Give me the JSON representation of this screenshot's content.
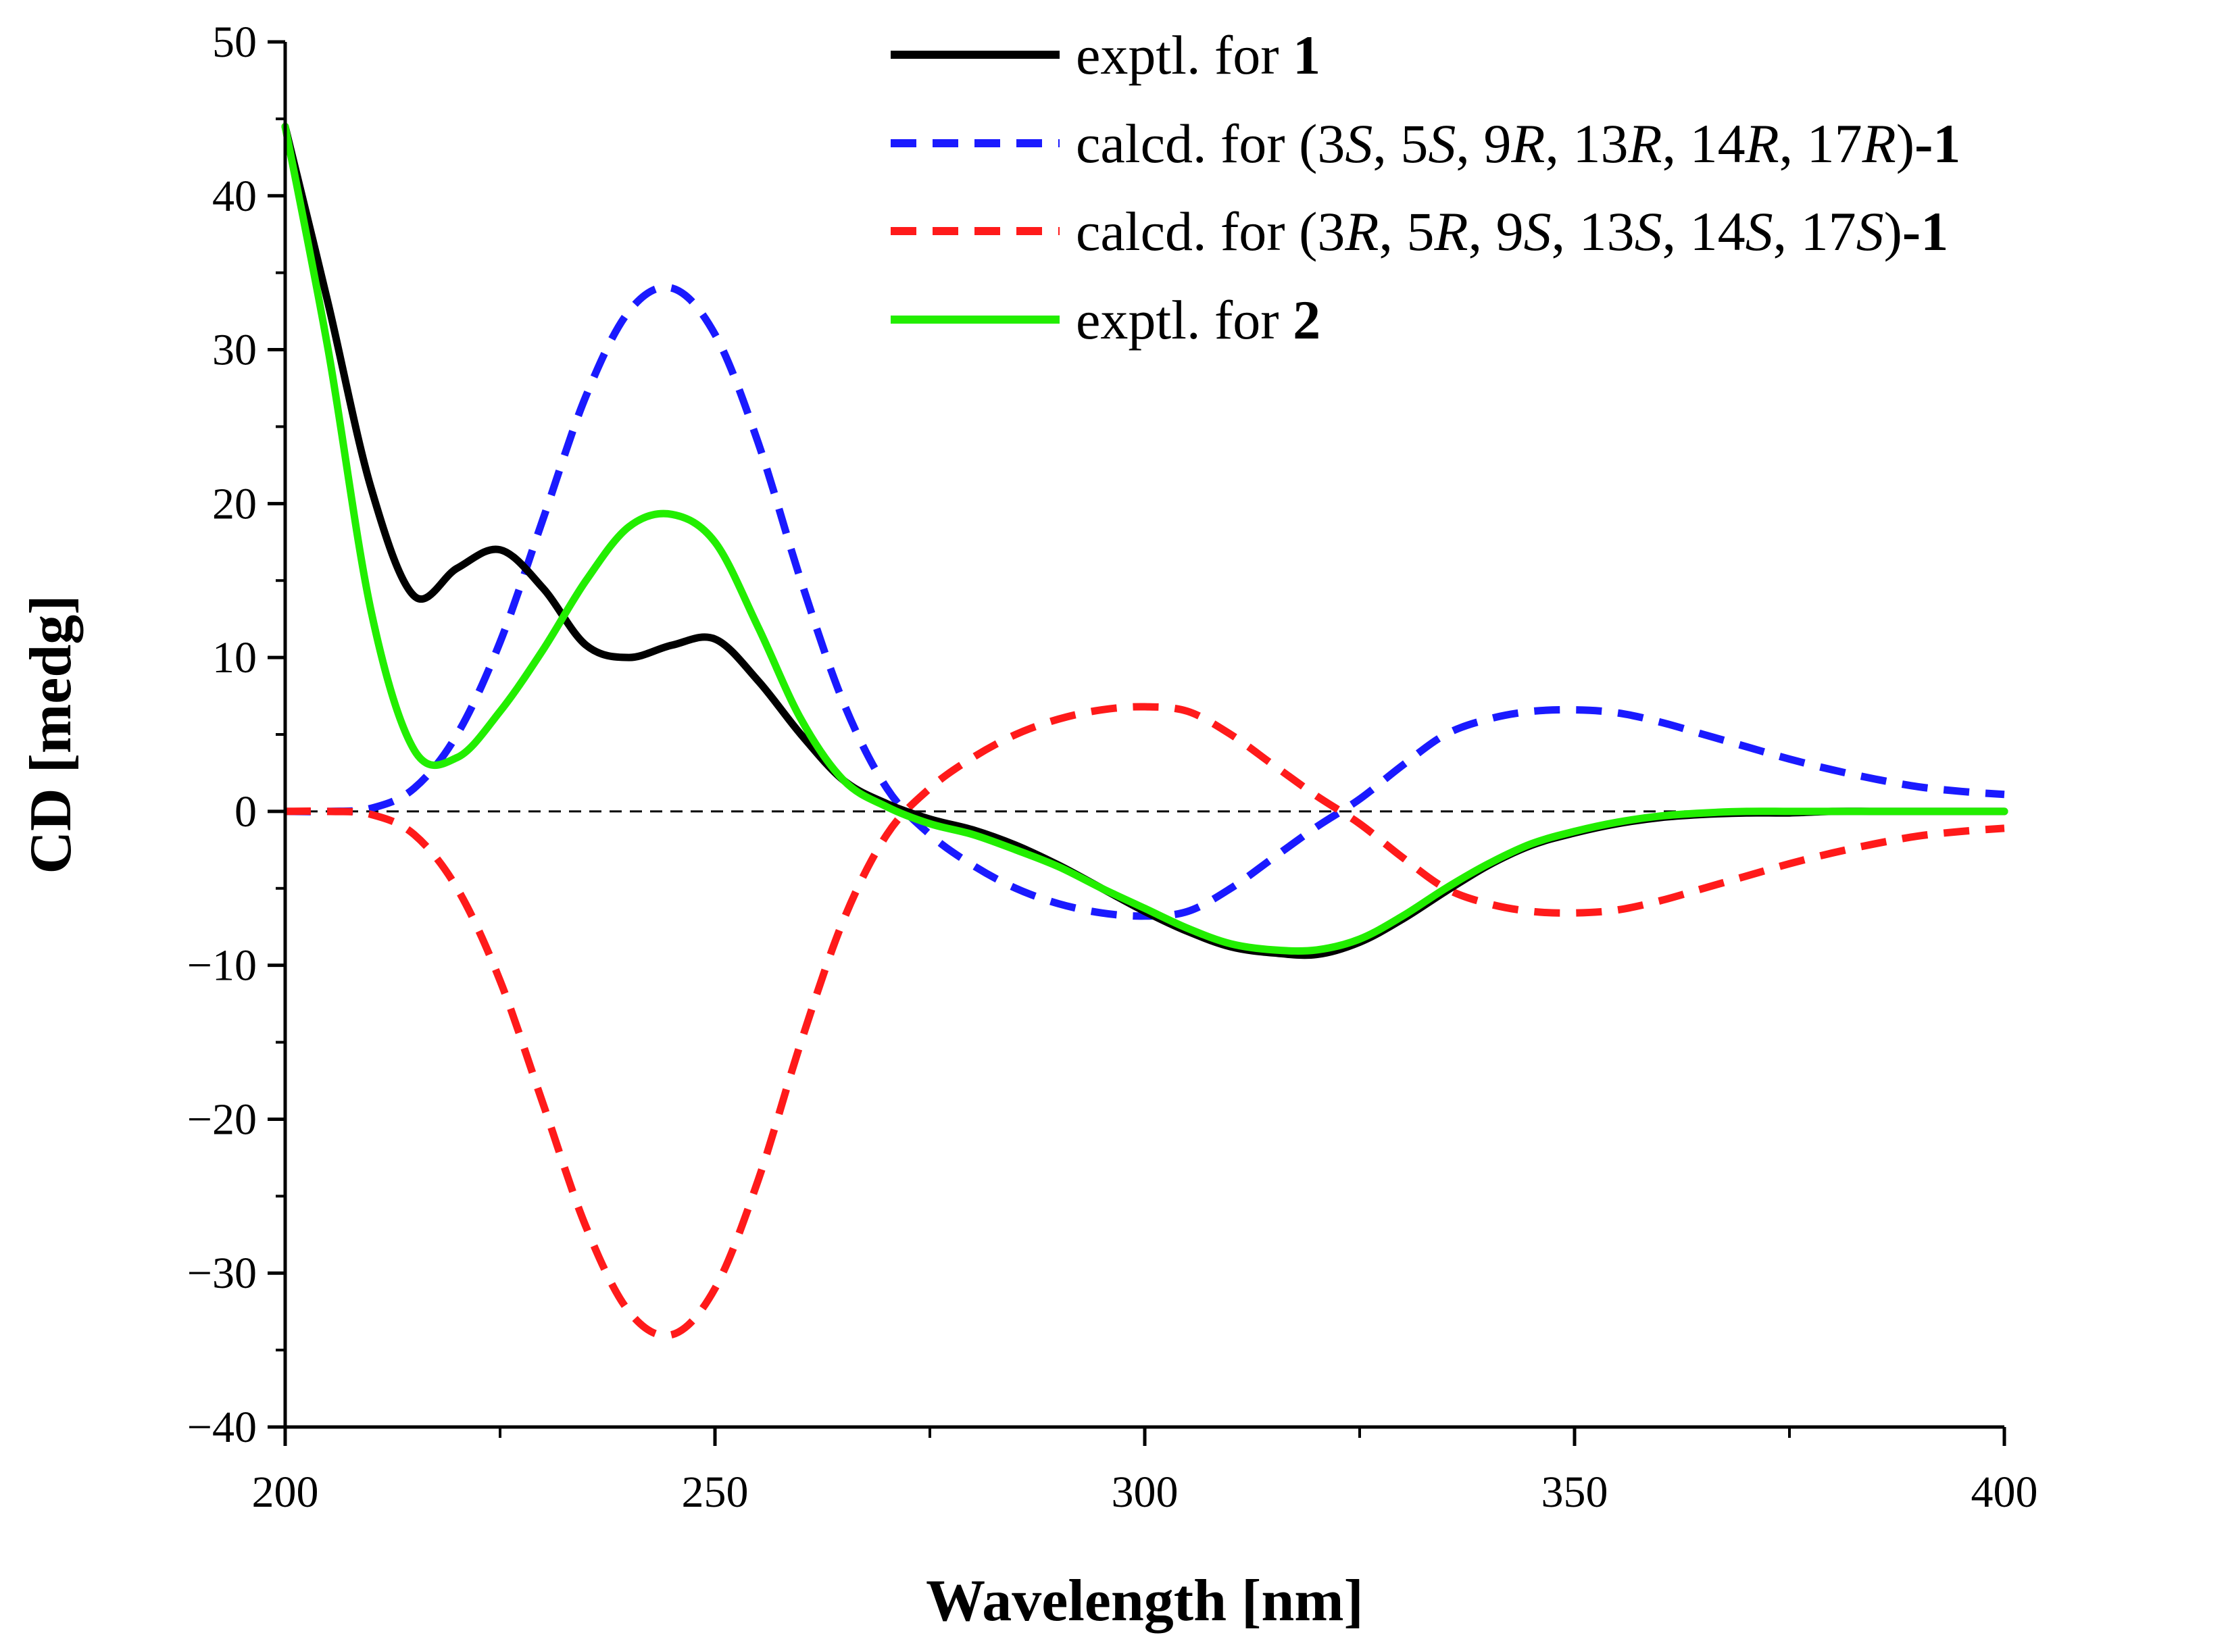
{
  "chart_data": {
    "type": "line",
    "title": "",
    "xlabel": "Wavelength [nm]",
    "ylabel": "CD [medg]",
    "xlim": [
      200,
      400
    ],
    "ylim": [
      -40,
      50
    ],
    "xticks": [
      200,
      250,
      300,
      350,
      400
    ],
    "xtick_labels": [
      "200",
      "250",
      "300",
      "350",
      "400"
    ],
    "yticks": [
      -40,
      -30,
      -20,
      -10,
      0,
      10,
      20,
      30,
      40,
      50
    ],
    "ytick_labels": [
      "−40",
      "−30",
      "−20",
      "−10",
      "0",
      "10",
      "20",
      "30",
      "40",
      "50"
    ],
    "grid": false,
    "legend_position": "top-right",
    "zero_line": true,
    "series": [
      {
        "name": "exptl. for 1",
        "legend_parts": [
          {
            "t": "exptl. for ",
            "s": "n"
          },
          {
            "t": "1",
            "s": "b"
          }
        ],
        "color": "#000000",
        "dash": "solid",
        "x": [
          200,
          205,
          210,
          215,
          220,
          225,
          230,
          235,
          240,
          245,
          250,
          255,
          260,
          265,
          270,
          275,
          280,
          285,
          290,
          295,
          300,
          305,
          310,
          315,
          320,
          325,
          330,
          335,
          340,
          345,
          350,
          355,
          360,
          365,
          370,
          375,
          380,
          385,
          390,
          395,
          400
        ],
        "y": [
          44.5,
          33,
          21,
          14,
          15.8,
          17,
          14.5,
          10.8,
          10,
          10.8,
          11.2,
          8.5,
          5,
          2,
          0.5,
          -0.5,
          -1.2,
          -2.2,
          -3.5,
          -5,
          -6.5,
          -7.8,
          -8.8,
          -9.2,
          -9.3,
          -8.5,
          -7,
          -5.2,
          -3.5,
          -2.2,
          -1.4,
          -0.8,
          -0.4,
          -0.2,
          -0.1,
          -0.1,
          0,
          0,
          0,
          0,
          0
        ]
      },
      {
        "name": "calcd. for (3S, 5S, 9R, 13R, 14R, 17R)-1",
        "legend_parts": [
          {
            "t": "calcd. for (3",
            "s": "n"
          },
          {
            "t": "S",
            "s": "i"
          },
          {
            "t": ", 5",
            "s": "n"
          },
          {
            "t": "S",
            "s": "i"
          },
          {
            "t": ", 9",
            "s": "n"
          },
          {
            "t": "R",
            "s": "i"
          },
          {
            "t": ", 13",
            "s": "n"
          },
          {
            "t": "R",
            "s": "i"
          },
          {
            "t": ", 14",
            "s": "n"
          },
          {
            "t": "R",
            "s": "i"
          },
          {
            "t": ", 17",
            "s": "n"
          },
          {
            "t": "R",
            "s": "i"
          },
          {
            "t": ")",
            "s": "n"
          },
          {
            "t": "-1",
            "s": "b"
          }
        ],
        "color": "#1a1aff",
        "dash": "dashed",
        "x": [
          200,
          205,
          210,
          215,
          220,
          225,
          230,
          235,
          240,
          245,
          250,
          255,
          260,
          265,
          270,
          275,
          280,
          285,
          290,
          295,
          300,
          305,
          310,
          315,
          320,
          325,
          330,
          335,
          340,
          345,
          350,
          355,
          360,
          365,
          370,
          375,
          380,
          385,
          390,
          395,
          400
        ],
        "y": [
          0,
          0,
          0.2,
          1.5,
          5,
          11,
          19,
          27,
          32.5,
          34,
          31,
          24,
          15,
          7,
          1.5,
          -1.5,
          -3.5,
          -5,
          -6,
          -6.6,
          -6.8,
          -6.5,
          -5,
          -3,
          -1,
          0.8,
          3,
          5,
          6,
          6.5,
          6.6,
          6.4,
          5.8,
          5,
          4.2,
          3.4,
          2.7,
          2.1,
          1.6,
          1.3,
          1.1
        ]
      },
      {
        "name": "calcd. for (3R, 5R, 9S, 13S, 14S, 17S)-1",
        "legend_parts": [
          {
            "t": "calcd. for (3",
            "s": "n"
          },
          {
            "t": "R",
            "s": "i"
          },
          {
            "t": ", 5",
            "s": "n"
          },
          {
            "t": "R",
            "s": "i"
          },
          {
            "t": ", 9",
            "s": "n"
          },
          {
            "t": "S",
            "s": "i"
          },
          {
            "t": ", 13",
            "s": "n"
          },
          {
            "t": "S",
            "s": "i"
          },
          {
            "t": ", 14",
            "s": "n"
          },
          {
            "t": "S",
            "s": "i"
          },
          {
            "t": ", 17",
            "s": "n"
          },
          {
            "t": "S",
            "s": "i"
          },
          {
            "t": ")",
            "s": "n"
          },
          {
            "t": "-1",
            "s": "b"
          }
        ],
        "color": "#ff1a1a",
        "dash": "dashed",
        "x": [
          200,
          205,
          210,
          215,
          220,
          225,
          230,
          235,
          240,
          245,
          250,
          255,
          260,
          265,
          270,
          275,
          280,
          285,
          290,
          295,
          300,
          305,
          310,
          315,
          320,
          325,
          330,
          335,
          340,
          345,
          350,
          355,
          360,
          365,
          370,
          375,
          380,
          385,
          390,
          395,
          400
        ],
        "y": [
          0,
          0,
          -0.2,
          -1.5,
          -5,
          -11,
          -19,
          -27,
          -32.5,
          -34,
          -31,
          -24,
          -15,
          -7,
          -1.5,
          1.5,
          3.5,
          5,
          6,
          6.6,
          6.8,
          6.5,
          5,
          3,
          1,
          -0.8,
          -3,
          -5,
          -6,
          -6.5,
          -6.6,
          -6.4,
          -5.8,
          -5,
          -4.2,
          -3.4,
          -2.7,
          -2.1,
          -1.6,
          -1.3,
          -1.1
        ]
      },
      {
        "name": "exptl. for 2",
        "legend_parts": [
          {
            "t": "exptl. for ",
            "s": "n"
          },
          {
            "t": "2",
            "s": "b"
          }
        ],
        "color": "#22ee00",
        "dash": "solid",
        "x": [
          200,
          205,
          210,
          215,
          220,
          225,
          230,
          235,
          240,
          245,
          250,
          255,
          260,
          265,
          270,
          275,
          280,
          285,
          290,
          295,
          300,
          305,
          310,
          315,
          320,
          325,
          330,
          335,
          340,
          345,
          350,
          355,
          360,
          365,
          370,
          375,
          380,
          385,
          390,
          395,
          400
        ],
        "y": [
          44.5,
          30,
          13,
          4,
          3.5,
          6.5,
          10.5,
          15,
          18.5,
          19.3,
          17.5,
          12,
          6,
          2,
          0.3,
          -0.8,
          -1.5,
          -2.5,
          -3.6,
          -5,
          -6.3,
          -7.6,
          -8.6,
          -9,
          -9,
          -8.3,
          -6.8,
          -5,
          -3.4,
          -2.1,
          -1.3,
          -0.7,
          -0.3,
          -0.1,
          0,
          0,
          0,
          0,
          0,
          0,
          0
        ]
      }
    ]
  }
}
